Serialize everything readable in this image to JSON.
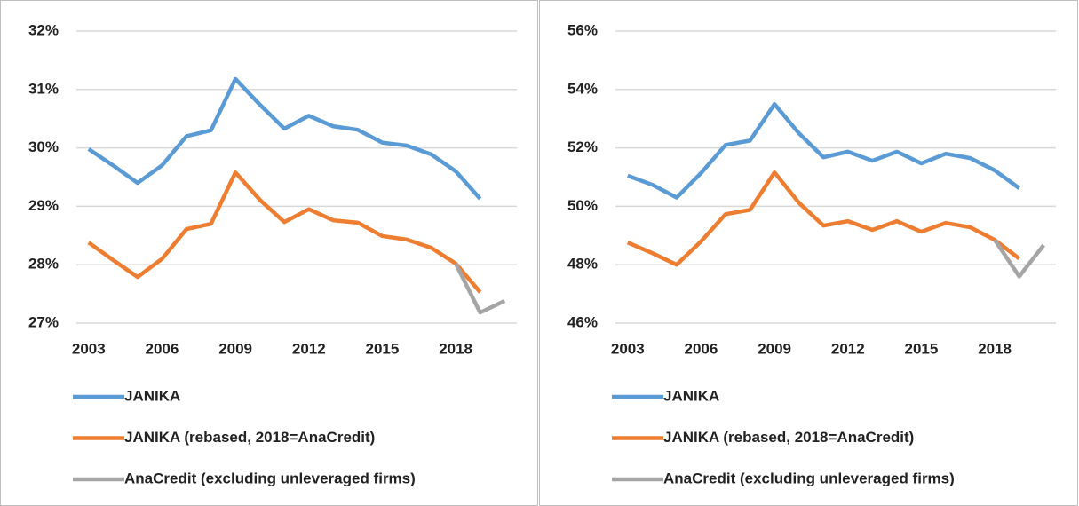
{
  "chart_data": [
    {
      "type": "line",
      "x": [
        2003,
        2004,
        2005,
        2006,
        2007,
        2008,
        2009,
        2010,
        2011,
        2012,
        2013,
        2014,
        2015,
        2016,
        2017,
        2018,
        2019,
        2020
      ],
      "xlim": [
        2002.5,
        2020.5
      ],
      "xticks": [
        2003,
        2006,
        2009,
        2012,
        2015,
        2018
      ],
      "ylim": [
        27,
        32
      ],
      "yticks": [
        {
          "value": 27,
          "label": "27%"
        },
        {
          "value": 28,
          "label": "28%"
        },
        {
          "value": 29,
          "label": "29%"
        },
        {
          "value": 30,
          "label": "30%"
        },
        {
          "value": 31,
          "label": "31%"
        },
        {
          "value": 32,
          "label": "32%"
        }
      ],
      "grid": true,
      "series": [
        {
          "name": "JANIKA",
          "color": "#5b9bd5",
          "values": [
            29.98,
            29.7,
            29.4,
            29.7,
            30.2,
            30.3,
            31.18,
            30.74,
            30.33,
            30.55,
            30.37,
            30.31,
            30.09,
            30.04,
            29.89,
            29.6,
            29.13,
            null
          ]
        },
        {
          "name": "JANIKA (rebased, 2018=AnaCredit)",
          "color": "#ed7d31",
          "values": [
            28.38,
            28.08,
            27.79,
            28.1,
            28.61,
            28.7,
            29.58,
            29.11,
            28.73,
            28.95,
            28.76,
            28.72,
            28.49,
            28.43,
            28.29,
            28.02,
            27.53,
            null
          ]
        },
        {
          "name": "AnaCredit (excluding unleveraged firms)",
          "color": "#a5a5a5",
          "values": [
            null,
            null,
            null,
            null,
            null,
            null,
            null,
            null,
            null,
            null,
            null,
            null,
            null,
            null,
            null,
            28.02,
            27.18,
            27.38
          ]
        }
      ]
    },
    {
      "type": "line",
      "x": [
        2003,
        2004,
        2005,
        2006,
        2007,
        2008,
        2009,
        2010,
        2011,
        2012,
        2013,
        2014,
        2015,
        2016,
        2017,
        2018,
        2019,
        2020
      ],
      "xlim": [
        2002.5,
        2020.5
      ],
      "xticks": [
        2003,
        2006,
        2009,
        2012,
        2015,
        2018
      ],
      "ylim": [
        46,
        56
      ],
      "yticks": [
        {
          "value": 46,
          "label": "46%"
        },
        {
          "value": 48,
          "label": "48%"
        },
        {
          "value": 50,
          "label": "50%"
        },
        {
          "value": 52,
          "label": "52%"
        },
        {
          "value": 54,
          "label": "54%"
        },
        {
          "value": 56,
          "label": "56%"
        }
      ],
      "grid": true,
      "series": [
        {
          "name": "JANIKA",
          "color": "#5b9bd5",
          "values": [
            51.05,
            50.74,
            50.3,
            51.14,
            52.1,
            52.25,
            53.5,
            52.5,
            51.68,
            51.87,
            51.56,
            51.87,
            51.47,
            51.8,
            51.65,
            51.23,
            50.62,
            null
          ]
        },
        {
          "name": "JANIKA (rebased, 2018=AnaCredit)",
          "color": "#ed7d31",
          "values": [
            48.76,
            48.4,
            48.0,
            48.8,
            49.73,
            49.88,
            51.16,
            50.12,
            49.34,
            49.49,
            49.19,
            49.49,
            49.13,
            49.43,
            49.28,
            48.85,
            48.21,
            null
          ]
        },
        {
          "name": "AnaCredit (excluding unleveraged firms)",
          "color": "#a5a5a5",
          "values": [
            null,
            null,
            null,
            null,
            null,
            null,
            null,
            null,
            null,
            null,
            null,
            null,
            null,
            null,
            null,
            48.85,
            47.6,
            48.67
          ]
        }
      ]
    }
  ]
}
